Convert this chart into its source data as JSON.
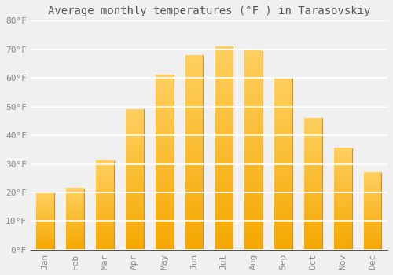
{
  "title": "Average monthly temperatures (°F ) in Tarasovskiy",
  "months": [
    "Jan",
    "Feb",
    "Mar",
    "Apr",
    "May",
    "Jun",
    "Jul",
    "Aug",
    "Sep",
    "Oct",
    "Nov",
    "Dec"
  ],
  "values": [
    20,
    21.5,
    31,
    49,
    61,
    68,
    71,
    69.5,
    60,
    46,
    35.5,
    27
  ],
  "bar_color_top": "#F5A800",
  "bar_color_bottom": "#FFD060",
  "bar_color_edge": "#E09000",
  "ylim": [
    0,
    80
  ],
  "yticks": [
    0,
    10,
    20,
    30,
    40,
    50,
    60,
    70,
    80
  ],
  "ytick_labels": [
    "0°F",
    "10°F",
    "20°F",
    "30°F",
    "40°F",
    "50°F",
    "60°F",
    "70°F",
    "80°F"
  ],
  "background_color": "#f0f0f0",
  "grid_color": "#ffffff",
  "title_fontsize": 10,
  "tick_fontsize": 8,
  "bar_width": 0.6
}
